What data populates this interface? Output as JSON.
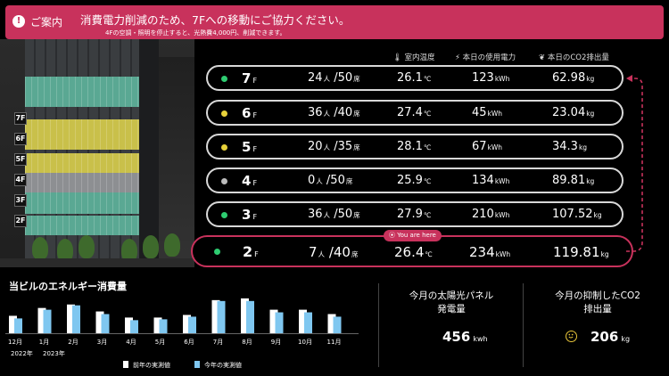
{
  "banner": {
    "label": "ご案内",
    "message": "消費電力削減のため、7Fへの移動にご協力ください。",
    "sub": "4Fの空調・照明を停止すると、光熱費4,000円、削減できます。",
    "color": "#c8325c"
  },
  "headers": {
    "temp": "室内温度",
    "power": "本日の使用電力",
    "co2": "本日のCO2排出量"
  },
  "floors": [
    {
      "floor": "7",
      "unit": "F",
      "dot": "#2ecc71",
      "people": "24",
      "people_unit": "人",
      "seats": "/50",
      "seats_unit": "席",
      "temp": "26.1",
      "temp_unit": "℃",
      "power": "123",
      "power_unit": "kWh",
      "co2": "62.98",
      "co2_unit": "kg"
    },
    {
      "floor": "6",
      "unit": "F",
      "dot": "#e8d23a",
      "people": "36",
      "people_unit": "人",
      "seats": "/40",
      "seats_unit": "席",
      "temp": "27.4",
      "temp_unit": "℃",
      "power": "45",
      "power_unit": "kWh",
      "co2": "23.04",
      "co2_unit": "kg"
    },
    {
      "floor": "5",
      "unit": "F",
      "dot": "#e8d23a",
      "people": "20",
      "people_unit": "人",
      "seats": "/35",
      "seats_unit": "席",
      "temp": "28.1",
      "temp_unit": "℃",
      "power": "67",
      "power_unit": "kWh",
      "co2": "34.3",
      "co2_unit": "kg"
    },
    {
      "floor": "4",
      "unit": "F",
      "dot": "#bbbbbb",
      "people": "0",
      "people_unit": "人",
      "seats": "/50",
      "seats_unit": "席",
      "temp": "25.9",
      "temp_unit": "℃",
      "power": "134",
      "power_unit": "kWh",
      "co2": "89.81",
      "co2_unit": "kg"
    },
    {
      "floor": "3",
      "unit": "F",
      "dot": "#2ecc71",
      "people": "36",
      "people_unit": "人",
      "seats": "/50",
      "seats_unit": "席",
      "temp": "27.9",
      "temp_unit": "℃",
      "power": "210",
      "power_unit": "kWh",
      "co2": "107.52",
      "co2_unit": "kg"
    }
  ],
  "current_floor": {
    "floor": "2",
    "unit": "F",
    "dot": "#2ecc71",
    "people": "7",
    "people_unit": "人",
    "seats": "/40",
    "seats_unit": "席",
    "temp": "26.4",
    "temp_unit": "℃",
    "power": "234",
    "power_unit": "kWh",
    "co2": "119.81",
    "co2_unit": "kg",
    "badge": "You are here"
  },
  "building_labels": [
    "7F",
    "6F",
    "5F",
    "4F",
    "3F",
    "2F"
  ],
  "energy": {
    "title": "当ビルのエネルギー消費量",
    "year_labels": [
      "2022年",
      "2023年"
    ],
    "legend_prev": "前年の実測値",
    "legend_curr": "今年の実測値"
  },
  "solar": {
    "title_line1": "今月の太陽光パネル",
    "title_line2": "発電量",
    "value": "456",
    "unit": "kwh"
  },
  "co2_saved": {
    "title_line1": "今月の抑制したCO2",
    "title_line2": "排出量",
    "value": "206",
    "unit": "kg",
    "icon": "smile-icon"
  },
  "chart_data": {
    "type": "bar",
    "categories": [
      "12月",
      "1月",
      "2月",
      "3月",
      "4月",
      "5月",
      "6月",
      "7月",
      "8月",
      "9月",
      "10月",
      "11月"
    ],
    "series": [
      {
        "name": "前年の実測値",
        "values": [
          20,
          29,
          33,
          25,
          18,
          18,
          21,
          38,
          40,
          27,
          27,
          22
        ]
      },
      {
        "name": "今年の実測値",
        "values": [
          17,
          27,
          32,
          22,
          15,
          16,
          19,
          37,
          37,
          24,
          24,
          19
        ]
      }
    ],
    "ylim": [
      0,
      45
    ],
    "colors": [
      "#ffffff",
      "#7fc7f0"
    ],
    "grid": false,
    "legend": "bottom"
  }
}
